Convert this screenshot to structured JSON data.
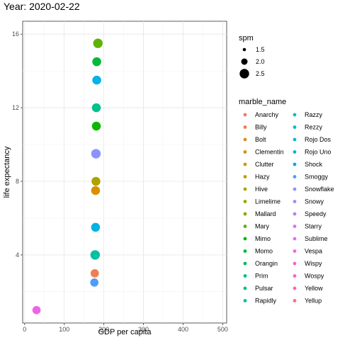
{
  "chart_data": {
    "type": "scatter",
    "title": "Year: 2020-02-22",
    "xlabel": "GDP per capita",
    "ylabel": "life expectancy",
    "xlim": [
      -5,
      510
    ],
    "ylim": [
      0.3,
      16.7
    ],
    "x_ticks": [
      0,
      100,
      200,
      300,
      400,
      500
    ],
    "y_ticks": [
      4,
      8,
      12,
      16
    ],
    "grid": true,
    "size_legend": {
      "title": "spm",
      "values": [
        1.5,
        2.0,
        2.5
      ],
      "labels": [
        "1.5",
        "2.0",
        "2.5"
      ]
    },
    "color_legend": {
      "title": "marble_name",
      "entries": [
        {
          "name": "Anarchy",
          "color": "#F8766D"
        },
        {
          "name": "Billy",
          "color": "#F17D50"
        },
        {
          "name": "Bolt",
          "color": "#E7861B"
        },
        {
          "name": "Clementin",
          "color": "#DB8E00"
        },
        {
          "name": "Clutter",
          "color": "#CE9700"
        },
        {
          "name": "Hazy",
          "color": "#BE9C00"
        },
        {
          "name": "Hive",
          "color": "#ADA200"
        },
        {
          "name": "Limelime",
          "color": "#99A800"
        },
        {
          "name": "Mallard",
          "color": "#80AD00"
        },
        {
          "name": "Mary",
          "color": "#5EB300"
        },
        {
          "name": "Mimo",
          "color": "#0BB702"
        },
        {
          "name": "Momo",
          "color": "#00BA38"
        },
        {
          "name": "Orangin",
          "color": "#00BC59"
        },
        {
          "name": "Prim",
          "color": "#00BF74"
        },
        {
          "name": "Pulsar",
          "color": "#00C08B"
        },
        {
          "name": "Rapidly",
          "color": "#00C1A2"
        },
        {
          "name": "Razzy",
          "color": "#00C0B5"
        },
        {
          "name": "Rezzy",
          "color": "#00BEC7"
        },
        {
          "name": "Rojo Dos",
          "color": "#00B9D7"
        },
        {
          "name": "Rojo Uno",
          "color": "#00B2E5"
        },
        {
          "name": "Shock",
          "color": "#00A8F1"
        },
        {
          "name": "Smoggy",
          "color": "#4C9EF8"
        },
        {
          "name": "Snowflake",
          "color": "#8B93FF"
        },
        {
          "name": "Snowy",
          "color": "#A687FF"
        },
        {
          "name": "Speedy",
          "color": "#BD7CFC"
        },
        {
          "name": "Starry",
          "color": "#D274FA"
        },
        {
          "name": "Sublime",
          "color": "#E56DF1"
        },
        {
          "name": "Vespa",
          "color": "#F064E4"
        },
        {
          "name": "Wispy",
          "color": "#FA62D4"
        },
        {
          "name": "Wospy",
          "color": "#FD62BF"
        },
        {
          "name": "Yellow",
          "color": "#FF66A8"
        },
        {
          "name": "Yellup",
          "color": "#FD6C8F"
        }
      ]
    },
    "points": [
      {
        "x": 185,
        "y": 15.5,
        "spm": 2.5,
        "color": "#5EB300"
      },
      {
        "x": 182,
        "y": 14.5,
        "spm": 2.4,
        "color": "#00BA38"
      },
      {
        "x": 182,
        "y": 13.5,
        "spm": 2.4,
        "color": "#00B2E5"
      },
      {
        "x": 181,
        "y": 12.0,
        "spm": 2.4,
        "color": "#00C08B"
      },
      {
        "x": 181,
        "y": 11.0,
        "spm": 2.4,
        "color": "#0BB702"
      },
      {
        "x": 180,
        "y": 9.5,
        "spm": 2.5,
        "color": "#8B93FF"
      },
      {
        "x": 180,
        "y": 8.0,
        "spm": 2.4,
        "color": "#ADA200"
      },
      {
        "x": 179,
        "y": 7.5,
        "spm": 2.4,
        "color": "#DB8E00"
      },
      {
        "x": 179,
        "y": 5.5,
        "spm": 2.4,
        "color": "#00B2E5"
      },
      {
        "x": 178,
        "y": 4.0,
        "spm": 2.5,
        "color": "#00C1A2"
      },
      {
        "x": 177,
        "y": 3.0,
        "spm": 2.3,
        "color": "#F17D50"
      },
      {
        "x": 176,
        "y": 2.5,
        "spm": 2.3,
        "color": "#4C9EF8"
      },
      {
        "x": 30,
        "y": 1.0,
        "spm": 2.3,
        "color": "#F064E4"
      }
    ]
  }
}
